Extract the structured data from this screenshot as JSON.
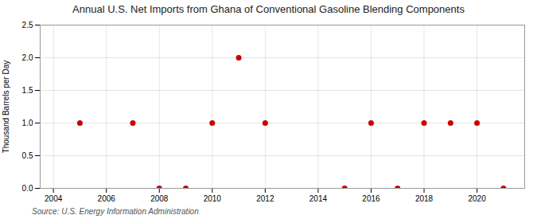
{
  "chart_data": {
    "type": "scatter",
    "title": "Annual U.S. Net Imports from Ghana of Conventional Gasoline Blending Components",
    "ylabel": "Thousand Barrels per Day",
    "caption": "Source: U.S. Energy Information Administration",
    "x": [
      2005,
      2007,
      2008,
      2009,
      2010,
      2011,
      2012,
      2015,
      2016,
      2017,
      2018,
      2019,
      2020,
      2021
    ],
    "values": [
      1.0,
      1.0,
      0.0,
      0.0,
      1.0,
      2.0,
      1.0,
      0.0,
      1.0,
      0.0,
      1.0,
      1.0,
      1.0,
      0.0
    ],
    "color": "#cc0000",
    "xlim": [
      2003.5,
      2021.8
    ],
    "ylim": [
      0.0,
      2.5
    ],
    "xticks": [
      2004,
      2006,
      2008,
      2010,
      2012,
      2014,
      2016,
      2018,
      2020
    ],
    "yticks": [
      {
        "value": 0.0,
        "label": "0.0"
      },
      {
        "value": 0.5,
        "label": "0.5"
      },
      {
        "value": 1.0,
        "label": "1.0"
      },
      {
        "value": 1.5,
        "label": "1.5"
      },
      {
        "value": 2.0,
        "label": "2.0"
      },
      {
        "value": 2.5,
        "label": "2.5"
      }
    ],
    "grid": true
  }
}
